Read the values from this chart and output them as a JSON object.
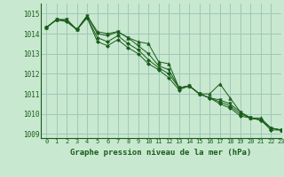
{
  "background_color": "#c8e8d0",
  "grid_color": "#a0c8b8",
  "line_color": "#1a5c1a",
  "title": "Graphe pression niveau de la mer (hPa)",
  "xlim": [
    -0.5,
    23
  ],
  "ylim": [
    1008.8,
    1015.5
  ],
  "yticks": [
    1009,
    1010,
    1011,
    1012,
    1013,
    1014,
    1015
  ],
  "xticks": [
    0,
    1,
    2,
    3,
    4,
    5,
    6,
    7,
    8,
    9,
    10,
    11,
    12,
    13,
    14,
    15,
    16,
    17,
    18,
    19,
    20,
    21,
    22,
    23
  ],
  "series": [
    [
      1014.3,
      1014.7,
      1014.7,
      1014.2,
      1014.9,
      1014.1,
      1014.0,
      1014.1,
      1013.8,
      1013.6,
      1013.5,
      1012.6,
      1012.5,
      1011.3,
      1011.4,
      1011.0,
      1011.0,
      1011.5,
      1010.8,
      1010.1,
      1009.8,
      1009.8,
      1009.3,
      1009.2
    ],
    [
      1014.3,
      1014.7,
      1014.7,
      1014.2,
      1014.9,
      1014.0,
      1013.9,
      1014.1,
      1013.8,
      1013.4,
      1013.0,
      1012.4,
      1012.2,
      1011.3,
      1011.4,
      1011.0,
      1010.8,
      1010.7,
      1010.5,
      1010.1,
      1009.8,
      1009.7,
      1009.3,
      1009.2
    ],
    [
      1014.3,
      1014.7,
      1014.6,
      1014.2,
      1014.8,
      1013.8,
      1013.6,
      1013.9,
      1013.5,
      1013.2,
      1012.7,
      1012.3,
      1012.0,
      1011.3,
      1011.4,
      1011.0,
      1010.8,
      1010.6,
      1010.4,
      1010.0,
      1009.8,
      1009.7,
      1009.3,
      1009.2
    ],
    [
      1014.3,
      1014.7,
      1014.6,
      1014.2,
      1014.8,
      1013.6,
      1013.4,
      1013.7,
      1013.3,
      1013.0,
      1012.5,
      1012.2,
      1011.8,
      1011.2,
      1011.4,
      1011.0,
      1010.8,
      1010.5,
      1010.3,
      1009.9,
      1009.8,
      1009.7,
      1009.2,
      1009.2
    ]
  ]
}
